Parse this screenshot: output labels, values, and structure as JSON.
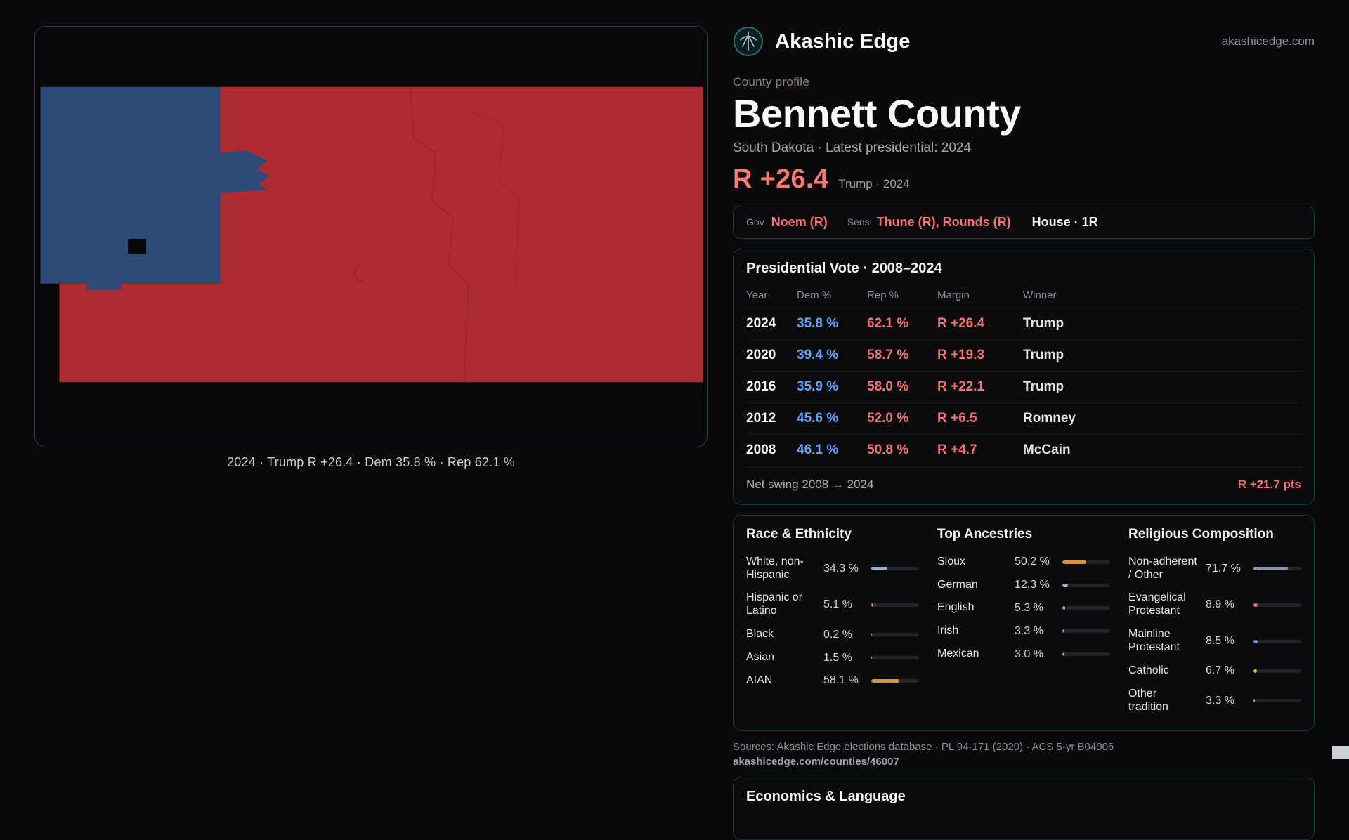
{
  "brand": {
    "name": "Akashic Edge",
    "domain": "akashicedge.com"
  },
  "header": {
    "eyebrow": "County profile",
    "title": "Bennett County",
    "subtitle": "South Dakota · Latest presidential: 2024",
    "margin_big": "R +26.4",
    "margin_note": "Trump · 2024"
  },
  "officials": {
    "gov_label": "Gov",
    "gov_value": "Noem (R)",
    "sens_label": "Sens",
    "sens_value": "Thune (R), Rounds (R)",
    "house_value": "House · 1R"
  },
  "map": {
    "caption": "2024 · Trump R +26.4 · Dem 35.8 % · Rep 62.1 %"
  },
  "presidential": {
    "title": "Presidential Vote · 2008–2024",
    "columns": [
      "Year",
      "Dem %",
      "Rep %",
      "Margin",
      "Winner"
    ],
    "rows": [
      {
        "year": "2024",
        "dem": "35.8 %",
        "rep": "62.1 %",
        "margin": "R +26.4",
        "winner": "Trump"
      },
      {
        "year": "2020",
        "dem": "39.4 %",
        "rep": "58.7 %",
        "margin": "R +19.3",
        "winner": "Trump"
      },
      {
        "year": "2016",
        "dem": "35.9 %",
        "rep": "58.0 %",
        "margin": "R +22.1",
        "winner": "Trump"
      },
      {
        "year": "2012",
        "dem": "45.6 %",
        "rep": "52.0 %",
        "margin": "R +6.5",
        "winner": "Romney"
      },
      {
        "year": "2008",
        "dem": "46.1 %",
        "rep": "50.8 %",
        "margin": "R +4.7",
        "winner": "McCain"
      }
    ],
    "net_swing_label": "Net swing 2008 → 2024",
    "net_swing_value": "R +21.7 pts"
  },
  "demographics": {
    "race": {
      "title": "Race & Ethnicity",
      "items": [
        {
          "label": "White, non-Hispanic",
          "value": "34.3 %",
          "pct": 34.3,
          "color": "#9db0cc"
        },
        {
          "label": "Hispanic or Latino",
          "value": "5.1 %",
          "pct": 5.1,
          "color": "#d79334"
        },
        {
          "label": "Black",
          "value": "0.2 %",
          "pct": 0.2,
          "color": "#9aa3ad"
        },
        {
          "label": "Asian",
          "value": "1.5 %",
          "pct": 1.5,
          "color": "#9fbf9b"
        },
        {
          "label": "AIAN",
          "value": "58.1 %",
          "pct": 58.1,
          "color": "#d79334"
        }
      ]
    },
    "ancestries": {
      "title": "Top Ancestries",
      "items": [
        {
          "label": "Sioux",
          "value": "50.2 %",
          "pct": 50.2,
          "color": "#d79334"
        },
        {
          "label": "German",
          "value": "12.3 %",
          "pct": 12.3,
          "color": "#9db0cc"
        },
        {
          "label": "English",
          "value": "5.3 %",
          "pct": 5.3,
          "color": "#9aa3ad"
        },
        {
          "label": "Irish",
          "value": "3.3 %",
          "pct": 3.3,
          "color": "#9aa3ad"
        },
        {
          "label": "Mexican",
          "value": "3.0 %",
          "pct": 3.0,
          "color": "#d79334"
        }
      ]
    },
    "religion": {
      "title": "Religious Composition",
      "items": [
        {
          "label": "Non-adherent / Other",
          "value": "71.7 %",
          "pct": 71.7,
          "color": "#8f93a8"
        },
        {
          "label": "Evangelical Protestant",
          "value": "8.9 %",
          "pct": 8.9,
          "color": "#e06c6c"
        },
        {
          "label": "Mainline Protestant",
          "value": "8.5 %",
          "pct": 8.5,
          "color": "#5b8ef0"
        },
        {
          "label": "Catholic",
          "value": "6.7 %",
          "pct": 6.7,
          "color": "#e3b23c"
        },
        {
          "label": "Other tradition",
          "value": "3.3 %",
          "pct": 3.3,
          "color": "#9aa3ad"
        }
      ]
    }
  },
  "sources": {
    "line1": "Sources: Akashic Edge elections database · PL 94-171 (2020) · ACS 5-yr B04006",
    "line2": "akashicedge.com/counties/46007"
  },
  "economics": {
    "title": "Economics & Language"
  },
  "colors": {
    "dem_blue": "#60a5fa",
    "rep_red": "#f87171",
    "headline_red": "#fb7a70",
    "panel_border_teal": "#113a3f",
    "map_dem_fill": "#2e4a78",
    "map_rep_fill": "#ae2c31"
  }
}
